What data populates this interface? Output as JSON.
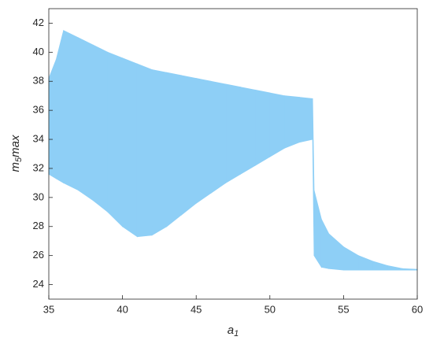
{
  "chart_data": {
    "type": "range-area",
    "xlabel": {
      "text": "a",
      "subscript": "1"
    },
    "ylabel": {
      "text": "m",
      "subscript": "5",
      "suffix": "max"
    },
    "color": "#8ecff6",
    "xlim": [
      35,
      60
    ],
    "xticks": [
      35,
      40,
      45,
      50,
      55,
      60
    ],
    "ylim": [
      23,
      43
    ],
    "yticks": [
      24,
      26,
      28,
      30,
      32,
      34,
      36,
      38,
      40,
      42
    ],
    "x": [
      35,
      35.5,
      36,
      37,
      38,
      39,
      40,
      41,
      42,
      43,
      44,
      45,
      46,
      47,
      48,
      49,
      50,
      51,
      52,
      52.9,
      53,
      53.5,
      54,
      55,
      56,
      57,
      58,
      59,
      60
    ],
    "lower": [
      31.6,
      31.3,
      31,
      30.5,
      29.8,
      29,
      28,
      27.3,
      27.4,
      28,
      28.8,
      29.6,
      30.3,
      31,
      31.6,
      32.2,
      32.8,
      33.4,
      33.8,
      34,
      26,
      25.2,
      25.1,
      25,
      25,
      25,
      25,
      25,
      25
    ],
    "upper": [
      38.2,
      39.5,
      41.5,
      41,
      40.5,
      40,
      39.6,
      39.2,
      38.8,
      38.6,
      38.4,
      38.2,
      38,
      37.8,
      37.6,
      37.4,
      37.2,
      37,
      36.9,
      36.8,
      30.5,
      28.5,
      27.5,
      26.6,
      26,
      25.6,
      25.3,
      25.1,
      25.05
    ]
  }
}
